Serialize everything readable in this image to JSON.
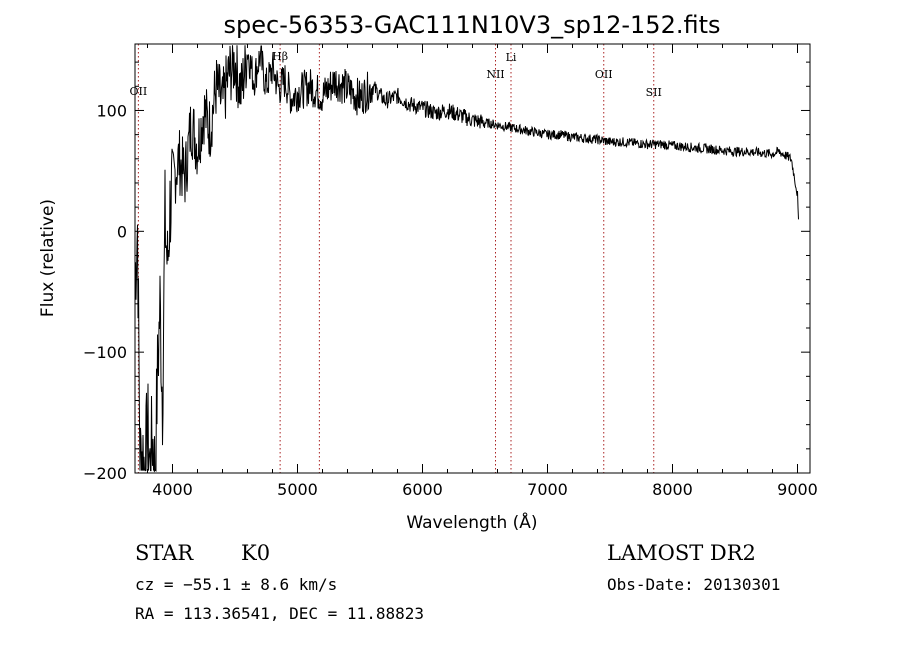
{
  "chart_data": {
    "type": "line",
    "title": "spec-56353-GAC111N10V3_sp12-152.fits",
    "xlabel": "Wavelength (Å)",
    "ylabel": "Flux (relative)",
    "xlim": [
      3700,
      9100
    ],
    "ylim": [
      -200,
      155
    ],
    "x_ticks": [
      4000,
      5000,
      6000,
      7000,
      8000,
      9000
    ],
    "y_ticks": [
      -200,
      -100,
      0,
      100
    ],
    "grid": false,
    "series": [
      {
        "color": "#000000",
        "x": [
          3700,
          3720,
          3740,
          3760,
          3780,
          3800,
          3820,
          3840,
          3860,
          3880,
          3900,
          3920,
          3940,
          3960,
          3980,
          4000,
          4050,
          4100,
          4150,
          4200,
          4250,
          4300,
          4350,
          4400,
          4450,
          4500,
          4550,
          4600,
          4650,
          4700,
          4750,
          4800,
          4850,
          4900,
          4950,
          5000,
          5100,
          5200,
          5300,
          5400,
          5500,
          5600,
          5700,
          5800,
          5900,
          6000,
          6100,
          6200,
          6300,
          6400,
          6500,
          6600,
          6700,
          6800,
          6900,
          7000,
          7100,
          7200,
          7300,
          7400,
          7500,
          7600,
          7700,
          7800,
          7900,
          8000,
          8100,
          8200,
          8300,
          8400,
          8500,
          8600,
          8700,
          8800,
          8850,
          8900,
          8950,
          9000,
          9010
        ],
        "y": [
          -40,
          5,
          -190,
          -180,
          -200,
          -160,
          -195,
          -170,
          -200,
          -120,
          -60,
          -140,
          10,
          -30,
          20,
          40,
          60,
          45,
          90,
          70,
          100,
          85,
          120,
          105,
          130,
          140,
          115,
          150,
          125,
          145,
          120,
          135,
          118,
          125,
          110,
          115,
          120,
          112,
          125,
          118,
          110,
          120,
          108,
          112,
          105,
          102,
          98,
          100,
          96,
          92,
          90,
          88,
          86,
          84,
          82,
          80,
          80,
          78,
          77,
          76,
          74,
          74,
          73,
          72,
          72,
          71,
          70,
          69,
          68,
          67,
          66,
          66,
          65,
          64,
          66,
          63,
          60,
          30,
          0
        ]
      }
    ],
    "line_markers": [
      {
        "label": "OII",
        "x": 3727
      },
      {
        "label": "Hβ",
        "x": 4861
      },
      {
        "label": "",
        "x": 5175
      },
      {
        "label": "NII",
        "x": 6584
      },
      {
        "label": "Li",
        "x": 6708
      },
      {
        "label": "OII",
        "x": 7450
      },
      {
        "label": "SII",
        "x": 7850
      }
    ],
    "marker_color": "#aa2222"
  },
  "info": {
    "class_type": "STAR",
    "subclass": "K0",
    "survey": "LAMOST DR2",
    "cz": "cz = −55.1 ± 8.6 km/s",
    "obs_date": "Obs-Date: 20130301",
    "radec": "RA = 113.36541, DEC =  11.88823"
  }
}
